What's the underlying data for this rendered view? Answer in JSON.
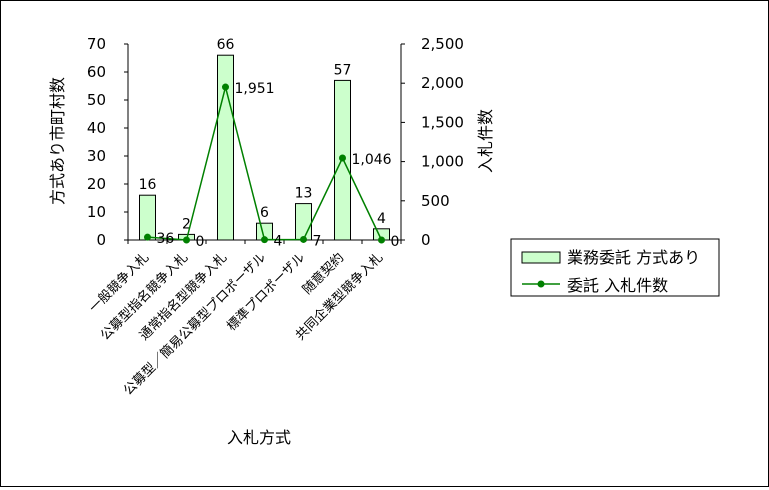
{
  "chart_data": {
    "type": "bar+line",
    "categories": [
      "一般競争入札",
      "公募型指名競争入札",
      "通常指名型競争入札",
      "公募型／簡易公募型プロポーザル",
      "標準プロポーザル",
      "随意契約",
      "共同企業型競争入札"
    ],
    "series": [
      {
        "name": "業務委託 方式あり",
        "kind": "bar",
        "axis": "left",
        "values": [
          16,
          2,
          66,
          6,
          13,
          57,
          4
        ],
        "color": "#ccffcc"
      },
      {
        "name": "委託 入札件数",
        "kind": "line",
        "axis": "right",
        "values": [
          36,
          0,
          1951,
          4,
          7,
          1046,
          0
        ],
        "color": "#008000"
      }
    ],
    "bar_labels": [
      "16",
      "2",
      "66",
      "6",
      "13",
      "57",
      "4"
    ],
    "line_labels": [
      "36",
      "0",
      "1,951",
      "4",
      "7",
      "1,046",
      "0"
    ],
    "xlabel": "入札方式",
    "ylabel_left": "方式あり市町村数",
    "ylabel_right": "入札件数",
    "ylim_left": [
      0,
      70
    ],
    "ylim_right": [
      0,
      2500
    ],
    "yticks_left": [
      "0",
      "10",
      "20",
      "30",
      "40",
      "50",
      "60",
      "70"
    ],
    "yticks_right": [
      "0",
      "500",
      "1,000",
      "1,500",
      "2,000",
      "2,500"
    ],
    "legend_position": "right"
  }
}
